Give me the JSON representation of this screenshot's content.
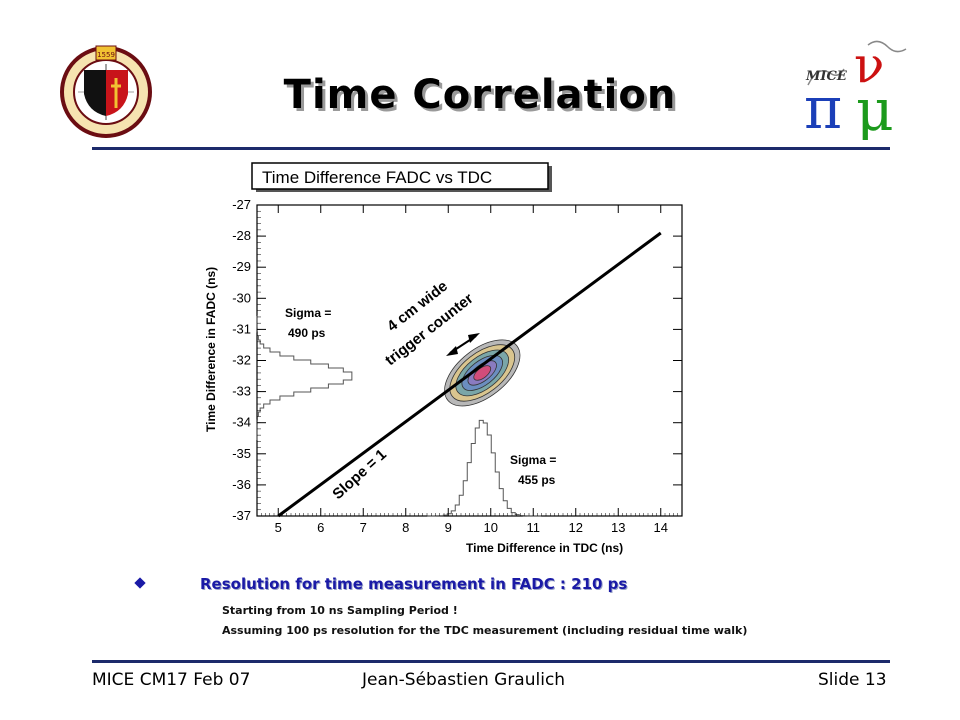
{
  "slide": {
    "title": "Time Correlation",
    "left_logo_text": "SCHOLA GENEVENSIS",
    "right_logo_text": "MICE",
    "colors": {
      "rule": "#1c2a6b",
      "bullet_text": "#1a1aa6"
    }
  },
  "chart_data": {
    "type": "scatter",
    "title": "Time Difference FADC vs TDC",
    "xlabel": "Time Difference in  TDC (ns)",
    "ylabel": "Time Difference in FADC (ns)",
    "xlim": [
      4.5,
      14.5
    ],
    "ylim": [
      -37,
      -27
    ],
    "x_ticks": [
      5,
      6,
      7,
      8,
      9,
      10,
      11,
      12,
      13,
      14
    ],
    "y_ticks": [
      -27,
      -28,
      -29,
      -30,
      -31,
      -32,
      -33,
      -34,
      -35,
      -36,
      -37
    ],
    "series": [
      {
        "name": "line",
        "x": [
          5.0,
          14.0
        ],
        "y": [
          -37.0,
          -27.9
        ]
      }
    ],
    "cluster": {
      "x": 9.8,
      "y": -32.4
    },
    "x_projection": {
      "mean": 9.8,
      "sigma_label": "Sigma =",
      "sigma_value": "455 ps"
    },
    "y_projection": {
      "mean": -32.5,
      "sigma_label": "Sigma =",
      "sigma_value": "490 ps"
    },
    "annotations": {
      "slope": "Slope = 1",
      "counter_line1": "4 cm wide",
      "counter_line2": "trigger counter"
    }
  },
  "text": {
    "bullet": "Resolution for time measurement in FADC : 210 ps",
    "line1": "Starting from 10 ns Sampling Period !",
    "line2": "Assuming 100 ps resolution for the TDC measurement  (including residual time walk)"
  },
  "footer": {
    "left": "MICE CM17 Feb 07",
    "center": "Jean-Sébastien Graulich",
    "right": "Slide 13"
  }
}
